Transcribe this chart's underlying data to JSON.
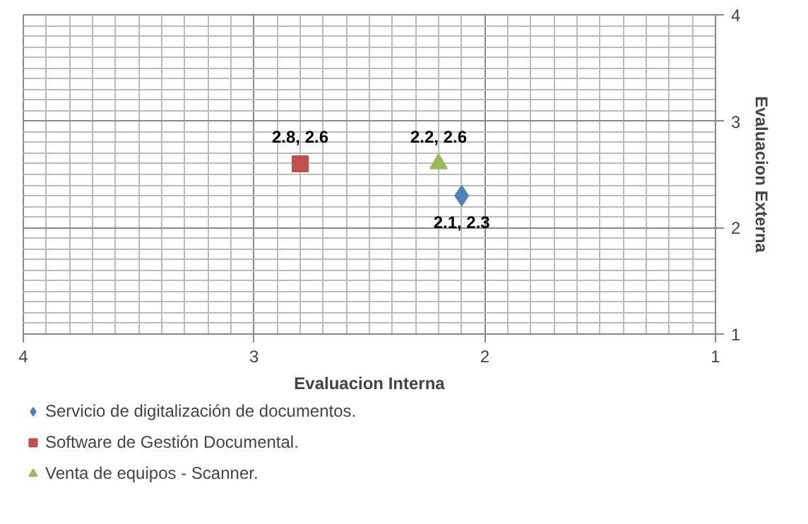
{
  "chart_data": {
    "type": "scatter",
    "xlabel": "Evaluacion Interna",
    "ylabel": "Evaluacion Externa",
    "xlim": [
      4,
      1
    ],
    "ylim": [
      1,
      4
    ],
    "xticks": [
      4,
      3,
      2,
      1
    ],
    "yticks": [
      1,
      2,
      3,
      4
    ],
    "grid": true,
    "legend": "bottom",
    "series": [
      {
        "name": "Servicio de digitalización de documentos.",
        "color": "#4f81bd",
        "marker": "diamond",
        "x": [
          2.1
        ],
        "values": [
          2.3
        ],
        "value_labels": [
          "2.1, 2.3"
        ]
      },
      {
        "name": "Software de Gestión Documental.",
        "color": "#c0504d",
        "marker": "square",
        "x": [
          2.8
        ],
        "values": [
          2.6
        ],
        "value_labels": [
          "2.8, 2.6"
        ]
      },
      {
        "name": "Venta de equipos - Scanner.",
        "color": "#9bbb59",
        "marker": "triangle",
        "x": [
          2.2
        ],
        "values": [
          2.6
        ],
        "value_labels": [
          "2.2, 2.6"
        ]
      }
    ]
  }
}
